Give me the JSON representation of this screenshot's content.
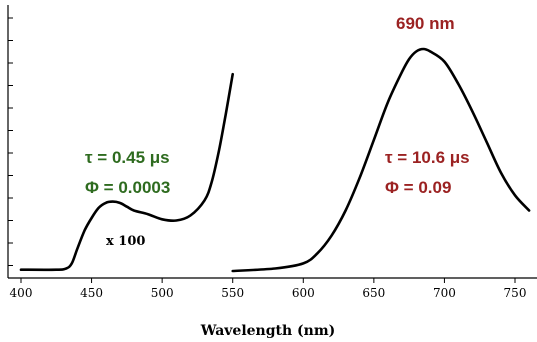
{
  "chart_data": {
    "type": "line",
    "title": "",
    "xlabel": "Wavelength (nm)",
    "ylabel": "",
    "xlim": [
      400,
      760
    ],
    "ylim": [
      0,
      100
    ],
    "xticks": [
      "400",
      "450",
      "500",
      "550",
      "600",
      "650",
      "700",
      "750"
    ],
    "grid": false,
    "legend": "none",
    "series": [
      {
        "color": "#000000",
        "x": [
          400,
          425,
          432,
          436,
          440,
          445,
          450,
          455,
          460,
          465,
          470,
          475,
          480,
          490,
          500,
          510,
          520,
          530,
          535,
          540,
          545,
          550
        ],
        "y": [
          0.5,
          0.5,
          1,
          3,
          9,
          16,
          21,
          25,
          27,
          27.5,
          27,
          25.5,
          24,
          22.5,
          20.5,
          20,
          22,
          28,
          35,
          47,
          62,
          78
        ]
      },
      {
        "color": "#000000",
        "x": [
          550,
          580,
          600,
          610,
          620,
          630,
          640,
          650,
          660,
          670,
          675,
          680,
          685,
          690,
          700,
          710,
          720,
          730,
          740,
          750,
          760
        ],
        "y": [
          0,
          1,
          3,
          7,
          14,
          24,
          37,
          52,
          67,
          79,
          84,
          87,
          88,
          87,
          83,
          74,
          63,
          51,
          39,
          30,
          24
        ]
      }
    ],
    "annotations": {
      "weak_tau": "τ = 0.45 μs",
      "weak_phi": "Φ = 0.0003",
      "weak_scale": "x 100",
      "strong_tau": "τ = 10.6 μs",
      "strong_phi": "Φ = 0.09",
      "peak_label": "690 nm"
    }
  },
  "colors": {
    "weak_annotation": "#2e6b1f",
    "strong_annotation": "#9b2222",
    "curve": "#000000"
  }
}
